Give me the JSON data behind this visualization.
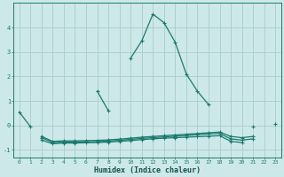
{
  "title": "",
  "xlabel": "Humidex (Indice chaleur)",
  "background_color": "#cce8e8",
  "grid_color": "#aacccc",
  "line_color": "#1a7a6e",
  "marker": "+",
  "x": [
    0,
    1,
    2,
    3,
    4,
    5,
    6,
    7,
    8,
    9,
    10,
    11,
    12,
    13,
    14,
    15,
    16,
    17,
    18,
    19,
    20,
    21,
    22,
    23
  ],
  "main_y": [
    0.55,
    -0.05,
    null,
    null,
    null,
    null,
    null,
    1.4,
    0.6,
    null,
    2.75,
    3.45,
    4.55,
    4.2,
    3.4,
    2.1,
    1.4,
    0.85,
    null,
    null,
    null,
    -0.05,
    null,
    0.05
  ],
  "flat_lines": [
    [
      null,
      null,
      -0.6,
      -0.75,
      -0.72,
      -0.72,
      -0.71,
      -0.7,
      -0.68,
      -0.65,
      -0.62,
      -0.58,
      -0.55,
      -0.52,
      -0.5,
      -0.48,
      -0.46,
      -0.44,
      -0.42,
      -0.65,
      -0.7,
      null,
      null,
      null
    ],
    [
      null,
      null,
      -0.5,
      -0.7,
      -0.68,
      -0.68,
      -0.67,
      -0.66,
      -0.64,
      -0.61,
      -0.57,
      -0.53,
      -0.5,
      -0.47,
      -0.44,
      -0.41,
      -0.38,
      -0.35,
      -0.33,
      -0.55,
      -0.6,
      -0.55,
      null,
      null
    ],
    [
      null,
      null,
      -0.45,
      -0.65,
      -0.63,
      -0.63,
      -0.62,
      -0.61,
      -0.59,
      -0.56,
      -0.52,
      -0.48,
      -0.45,
      -0.42,
      -0.39,
      -0.36,
      -0.33,
      -0.3,
      -0.27,
      -0.45,
      -0.5,
      -0.45,
      null,
      null
    ]
  ],
  "xlim": [
    -0.5,
    23.5
  ],
  "ylim": [
    -1.3,
    5.0
  ],
  "yticks": [
    -1,
    0,
    1,
    2,
    3,
    4
  ],
  "xticks": [
    0,
    1,
    2,
    3,
    4,
    5,
    6,
    7,
    8,
    9,
    10,
    11,
    12,
    13,
    14,
    15,
    16,
    17,
    18,
    19,
    20,
    21,
    22,
    23
  ]
}
